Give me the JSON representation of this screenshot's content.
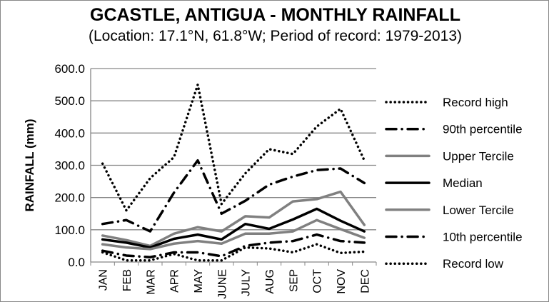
{
  "chart_data": {
    "type": "line",
    "title": "GCASTLE, ANTIGUA - MONTHLY RAINFALL",
    "subtitle": "(Location: 17.1°N, 61.8°W; Period of record: 1979-2013)",
    "xlabel": "",
    "ylabel": "RAINFALL (mm)",
    "ylim": [
      0,
      600
    ],
    "yticks": [
      "0.0",
      "100.0",
      "200.0",
      "300.0",
      "400.0",
      "500.0",
      "600.0"
    ],
    "grid": true,
    "legend_position": "right",
    "categories": [
      "JAN",
      "FEB",
      "MAR",
      "APR",
      "MAY",
      "JUNE",
      "JULY",
      "AUG",
      "SEP",
      "OCT",
      "NOV",
      "DEC"
    ],
    "series": [
      {
        "name": "Record high",
        "style": "dotted",
        "color": "#000000",
        "values": [
          305,
          160,
          260,
          325,
          550,
          180,
          275,
          350,
          335,
          420,
          475,
          315
        ]
      },
      {
        "name": "90th percentile",
        "style": "dashdot",
        "color": "#000000",
        "values": [
          118,
          130,
          95,
          215,
          315,
          150,
          190,
          240,
          265,
          285,
          290,
          245
        ]
      },
      {
        "name": "Upper Tercile",
        "style": "solid",
        "color": "#808080",
        "values": [
          82,
          68,
          50,
          88,
          108,
          95,
          142,
          138,
          188,
          195,
          218,
          115
        ]
      },
      {
        "name": "Median",
        "style": "solid",
        "color": "#000000",
        "values": [
          70,
          60,
          45,
          72,
          85,
          70,
          118,
          103,
          132,
          165,
          128,
          95
        ]
      },
      {
        "name": "Lower Tercile",
        "style": "solid",
        "color": "#808080",
        "values": [
          55,
          45,
          40,
          57,
          65,
          57,
          88,
          88,
          95,
          130,
          102,
          75
        ]
      },
      {
        "name": "10th percentile",
        "style": "dashdot",
        "color": "#000000",
        "values": [
          35,
          20,
          15,
          30,
          30,
          18,
          50,
          60,
          65,
          85,
          65,
          60
        ]
      },
      {
        "name": "Record low",
        "style": "dotted",
        "color": "#000000",
        "values": [
          30,
          5,
          5,
          25,
          5,
          5,
          45,
          42,
          30,
          55,
          28,
          32
        ]
      }
    ]
  }
}
